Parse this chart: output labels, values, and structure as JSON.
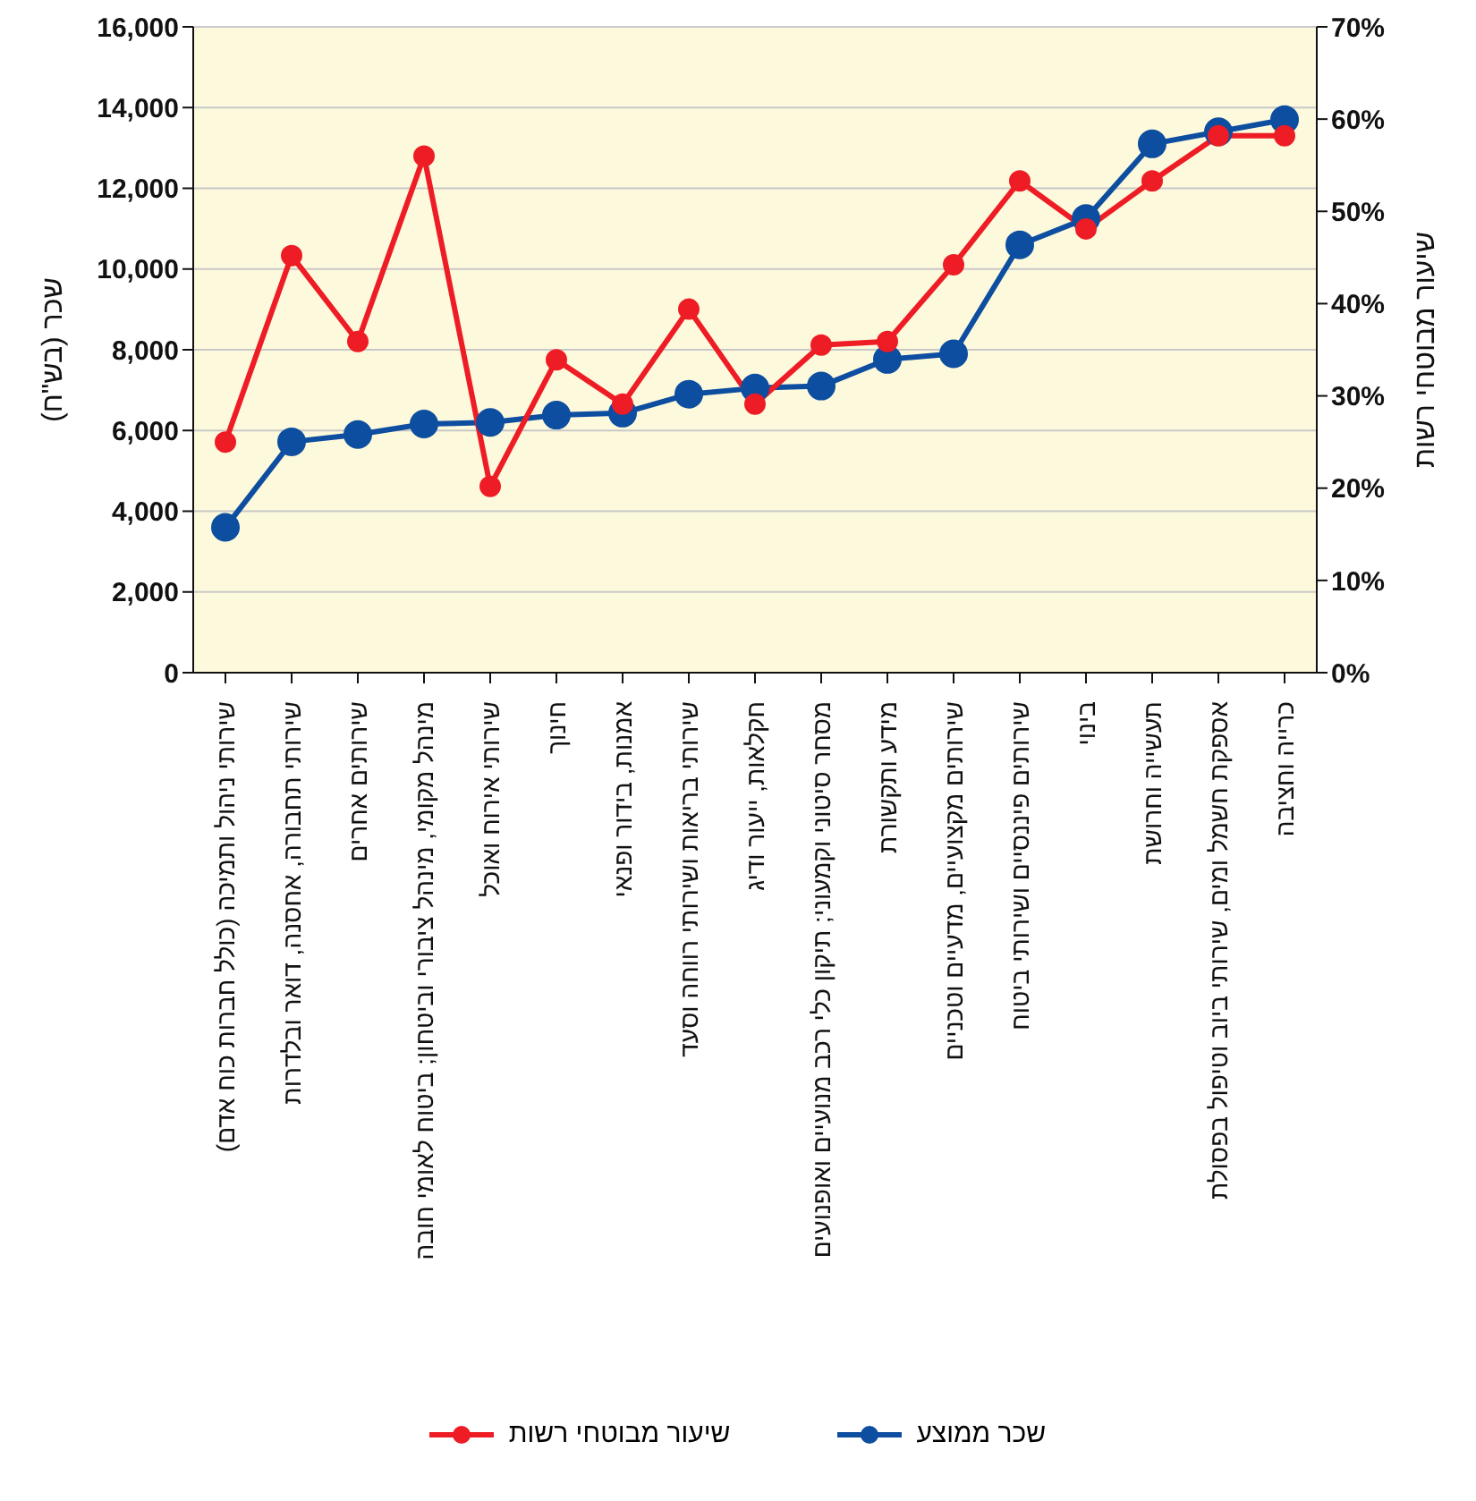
{
  "chart_data": {
    "type": "line",
    "categories": [
      "שירותי ניהול ותמיכה (כולל חברות כוח אדם)",
      "שירותי תחבורה, אחסנה, דואר ובלדרות",
      "שירותים אחרים",
      "מינהל מקומי, מינהל ציבורי וביטחון; ביטוח לאומי חובה",
      "שירותי אירוח ואוכל",
      "חינוך",
      "אמנות, בידור ופנאי",
      "שירותי בריאות ושירותי רווחה וסעד",
      "חקלאות, ייעור ודיג",
      "מסחר סיטוני וקמעוני; תיקון כלי רכב מנועיים ואופנועים",
      "מידע ותקשורת",
      "שירותים מקצועיים, מדעיים וטכניים",
      "שירותים פיננסיים ושירותי ביטוח",
      "בינוי",
      "תעשייה וחרושת",
      "אספקת חשמל ומים, שירותי ביוב וטיפול בפסולת",
      "כרייה וחציבה"
    ],
    "series": [
      {
        "name": "שכר ממוצע",
        "color": "#0d4ea0",
        "values": [
          3600,
          5720,
          5900,
          6160,
          6200,
          6380,
          6430,
          6900,
          7050,
          7100,
          7760,
          7900,
          10600,
          11250,
          13100,
          13400,
          13700
        ]
      },
      {
        "name": "שיעור מבוטחי רשות",
        "color": "#ee1c25",
        "axis": "y2",
        "values": [
          25.0,
          45.2,
          35.9,
          56.0,
          20.2,
          33.9,
          29.1,
          39.4,
          29.1,
          35.5,
          35.9,
          44.2,
          53.3,
          48.1,
          53.3,
          58.2,
          58.2
        ]
      }
    ],
    "ylabel": "שכר (בש\"ח)",
    "y2label": "שיעור מבוטחי רשות",
    "ylim": [
      0,
      16000
    ],
    "yticks": [
      {
        "value": 0,
        "label": "0"
      },
      {
        "value": 2000,
        "label": "2,000"
      },
      {
        "value": 4000,
        "label": "4,000"
      },
      {
        "value": 6000,
        "label": "6,000"
      },
      {
        "value": 8000,
        "label": "8,000"
      },
      {
        "value": 10000,
        "label": "10,000"
      },
      {
        "value": 12000,
        "label": "12,000"
      },
      {
        "value": 14000,
        "label": "14,000"
      },
      {
        "value": 16000,
        "label": "16,000"
      }
    ],
    "y2lim": [
      0,
      70
    ],
    "y2ticks": [
      {
        "value": 0,
        "label": "0%"
      },
      {
        "value": 10,
        "label": "10%"
      },
      {
        "value": 20,
        "label": "20%"
      },
      {
        "value": 30,
        "label": "30%"
      },
      {
        "value": 40,
        "label": "40%"
      },
      {
        "value": 50,
        "label": "50%"
      },
      {
        "value": 60,
        "label": "60%"
      },
      {
        "value": 70,
        "label": "70%"
      }
    ],
    "grid": "y",
    "legend": "bottom",
    "marker": "circle",
    "line_style": "solid"
  }
}
